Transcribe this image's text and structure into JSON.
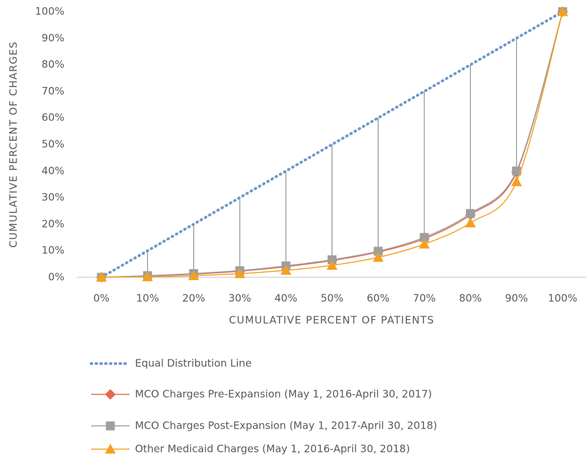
{
  "chart_data": {
    "type": "line",
    "x": [
      0,
      10,
      20,
      30,
      40,
      50,
      60,
      70,
      80,
      90,
      100
    ],
    "xlabel": "CUMULATIVE  PERCENT  OF PATIENTS",
    "ylabel": "CUMULATIVE  PERCENT  OF CHARGES",
    "xlim": [
      0,
      100
    ],
    "ylim": [
      0,
      100
    ],
    "xticks": [
      {
        "value": 0,
        "label": "0%"
      },
      {
        "value": 10,
        "label": "10%"
      },
      {
        "value": 20,
        "label": "20%"
      },
      {
        "value": 30,
        "label": "30%"
      },
      {
        "value": 40,
        "label": "40%"
      },
      {
        "value": 50,
        "label": "50%"
      },
      {
        "value": 60,
        "label": "60%"
      },
      {
        "value": 70,
        "label": "70%"
      },
      {
        "value": 80,
        "label": "80%"
      },
      {
        "value": 90,
        "label": "90%"
      },
      {
        "value": 100,
        "label": "100%"
      }
    ],
    "yticks": [
      {
        "value": 0,
        "label": "0%"
      },
      {
        "value": 10,
        "label": "10%"
      },
      {
        "value": 20,
        "label": "20%"
      },
      {
        "value": 30,
        "label": "30%"
      },
      {
        "value": 40,
        "label": "40%"
      },
      {
        "value": 50,
        "label": "50%"
      },
      {
        "value": 60,
        "label": "60%"
      },
      {
        "value": 70,
        "label": "70%"
      },
      {
        "value": 80,
        "label": "80%"
      },
      {
        "value": 90,
        "label": "90%"
      },
      {
        "value": 100,
        "label": "100%"
      }
    ],
    "high_low_lines": true,
    "legend": "bottom",
    "series": [
      {
        "name": "Equal Distribution Line",
        "color": "#6f97c8",
        "style": "dotted",
        "marker": "none",
        "values": [
          0,
          10,
          20,
          30,
          40,
          50,
          60,
          70,
          80,
          90,
          100
        ]
      },
      {
        "name": "MCO Charges Pre-Expansion (May 1, 2016-April 30, 2017)",
        "color": "#e5694a",
        "style": "solid",
        "marker": "diamond",
        "values": [
          0,
          0.5,
          1.2,
          2.3,
          4.0,
          6.3,
          9.5,
          14.5,
          23.5,
          39.5,
          100
        ]
      },
      {
        "name": "MCO Charges Post-Expansion (May 1, 2017-April 30, 2018)",
        "color": "#9e9e9e",
        "style": "solid",
        "marker": "square",
        "values": [
          0,
          0.6,
          1.4,
          2.5,
          4.3,
          6.6,
          9.8,
          15,
          24,
          40,
          100
        ]
      },
      {
        "name": "Other Medicaid Charges (May 1, 2016-April 30, 2018)",
        "color": "#f5a020",
        "style": "solid",
        "marker": "triangle",
        "values": [
          0,
          0.2,
          0.6,
          1.4,
          2.6,
          4.5,
          7.5,
          12.5,
          20.5,
          36,
          100
        ]
      }
    ]
  }
}
